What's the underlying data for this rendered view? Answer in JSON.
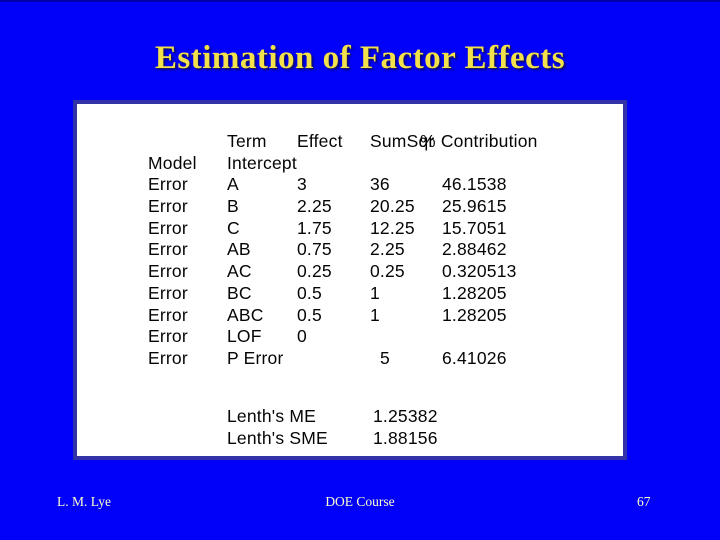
{
  "slide": {
    "title": "Estimation of Factor Effects",
    "footer": {
      "author": "L. M. Lye",
      "course": "DOE Course",
      "page_number": "67"
    },
    "colors": {
      "background": "#0101fa",
      "title_text": "#f2e14b",
      "footer_text": "#ffffca",
      "panel_background": "#ffffff",
      "panel_border": "#3232a8",
      "table_text": "#050505"
    }
  },
  "table": {
    "headers": {
      "term": "Term",
      "effect": "Effect",
      "sumsqr": "SumSqr",
      "contribution": "% Contribution"
    },
    "rows": [
      {
        "source": "Model",
        "term": "Intercept",
        "effect": "",
        "sumsqr": "",
        "contribution": ""
      },
      {
        "source": "Error",
        "term": "A",
        "effect": "3",
        "sumsqr": "36",
        "contribution": "46.1538"
      },
      {
        "source": "Error",
        "term": "B",
        "effect": "2.25",
        "sumsqr": "20.25",
        "contribution": "25.9615"
      },
      {
        "source": "Error",
        "term": "C",
        "effect": "1.75",
        "sumsqr": "12.25",
        "contribution": "15.7051"
      },
      {
        "source": "Error",
        "term": "AB",
        "effect": "0.75",
        "sumsqr": "2.25",
        "contribution": "2.88462"
      },
      {
        "source": "Error",
        "term": "AC",
        "effect": "0.25",
        "sumsqr": "0.25",
        "contribution": "0.320513"
      },
      {
        "source": "Error",
        "term": "BC",
        "effect": "0.5",
        "sumsqr": "1",
        "contribution": "1.28205"
      },
      {
        "source": "Error",
        "term": "ABC",
        "effect": "0.5",
        "sumsqr": "1",
        "contribution": "1.28205"
      },
      {
        "source": "Error",
        "term": "LOF",
        "effect": "0",
        "sumsqr": "",
        "contribution": ""
      },
      {
        "source": "Error",
        "term": "P Error",
        "effect": "",
        "sumsqr": "5",
        "contribution": "6.41026"
      }
    ],
    "lenth": [
      {
        "label": "Lenth's ME",
        "value": "1.25382"
      },
      {
        "label": "Lenth's SME",
        "value": "1.88156"
      }
    ]
  }
}
